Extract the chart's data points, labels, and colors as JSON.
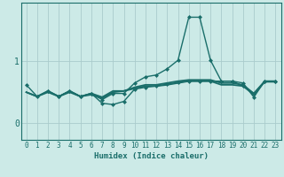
{
  "title": "",
  "xlabel": "Humidex (Indice chaleur)",
  "ylabel": "",
  "bg_color": "#cceae7",
  "grid_color": "#aacccc",
  "line_color": "#1a6e6a",
  "xlim": [
    -0.5,
    23.5
  ],
  "ylim": [
    -0.28,
    1.95
  ],
  "yticks": [
    0,
    1
  ],
  "xticks": [
    0,
    1,
    2,
    3,
    4,
    5,
    6,
    7,
    8,
    9,
    10,
    11,
    12,
    13,
    14,
    15,
    16,
    17,
    18,
    19,
    20,
    21,
    22,
    23
  ],
  "lines": [
    {
      "x": [
        0,
        1,
        2,
        3,
        4,
        5,
        6,
        7,
        8,
        9,
        10,
        11,
        12,
        13,
        14,
        15,
        16,
        17,
        18,
        19,
        20,
        21,
        22,
        23
      ],
      "y": [
        0.62,
        0.43,
        0.52,
        0.43,
        0.52,
        0.43,
        0.48,
        0.38,
        0.48,
        0.48,
        0.65,
        0.75,
        0.78,
        0.88,
        1.02,
        1.72,
        1.72,
        1.02,
        0.68,
        0.68,
        0.65,
        0.42,
        0.68,
        0.68
      ],
      "marker": "D",
      "markersize": 2.0,
      "linewidth": 1.0
    },
    {
      "x": [
        0,
        1,
        2,
        3,
        4,
        5,
        6,
        7,
        8,
        9,
        10,
        11,
        12,
        13,
        14,
        15,
        16,
        17,
        18,
        19,
        20,
        21,
        22,
        23
      ],
      "y": [
        0.5,
        0.43,
        0.52,
        0.43,
        0.52,
        0.43,
        0.48,
        0.42,
        0.52,
        0.52,
        0.58,
        0.62,
        0.62,
        0.65,
        0.68,
        0.7,
        0.7,
        0.7,
        0.65,
        0.65,
        0.62,
        0.48,
        0.68,
        0.68
      ],
      "marker": null,
      "markersize": 0,
      "linewidth": 1.3
    },
    {
      "x": [
        0,
        1,
        2,
        3,
        4,
        5,
        6,
        7,
        8,
        9,
        10,
        11,
        12,
        13,
        14,
        15,
        16,
        17,
        18,
        19,
        20,
        21,
        22,
        23
      ],
      "y": [
        0.5,
        0.43,
        0.5,
        0.43,
        0.5,
        0.43,
        0.46,
        0.4,
        0.5,
        0.52,
        0.56,
        0.6,
        0.6,
        0.62,
        0.65,
        0.68,
        0.68,
        0.68,
        0.62,
        0.62,
        0.6,
        0.46,
        0.67,
        0.67
      ],
      "marker": null,
      "markersize": 0,
      "linewidth": 1.3
    },
    {
      "x": [
        2,
        3,
        4,
        5,
        6,
        7,
        8,
        9,
        10,
        11,
        12,
        13,
        14,
        15,
        16,
        17,
        18,
        19,
        20,
        21,
        22,
        23
      ],
      "y": [
        0.52,
        0.43,
        0.52,
        0.43,
        0.48,
        0.32,
        0.3,
        0.35,
        0.55,
        0.58,
        0.6,
        0.63,
        0.66,
        0.68,
        0.68,
        0.68,
        0.68,
        0.68,
        0.6,
        0.48,
        0.67,
        0.67
      ],
      "marker": "D",
      "markersize": 2.0,
      "linewidth": 1.0
    }
  ]
}
